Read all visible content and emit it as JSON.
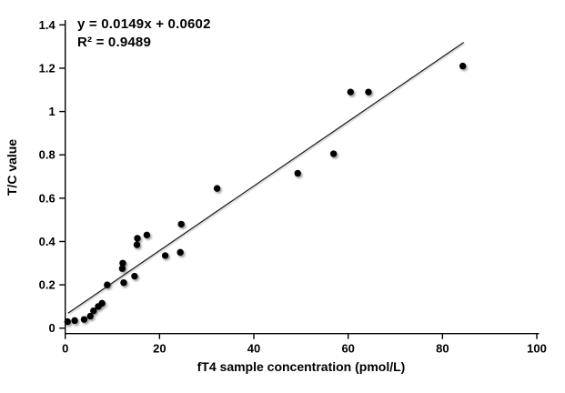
{
  "chart_data": {
    "type": "scatter",
    "title": "",
    "xlabel": "fT4 sample concentration (pmol/L)",
    "ylabel": "T/C value",
    "annotation": {
      "equation": "y = 0.0149x + 0.0602",
      "r_squared": "R² = 0.9489"
    },
    "xlim": [
      0,
      100
    ],
    "ylim": [
      0,
      1.4
    ],
    "xticks": [
      0,
      20,
      40,
      60,
      80,
      100
    ],
    "xtick_labels": [
      "0",
      "20",
      "40",
      "60",
      "80",
      "100"
    ],
    "yticks": [
      0,
      0.2,
      0.4,
      0.6,
      0.8,
      1,
      1.2,
      1.4
    ],
    "ytick_labels": [
      "0",
      "0.2",
      "0.4",
      "0.6",
      "0.8",
      "1",
      "1.2",
      "1.4"
    ],
    "grid": false,
    "legend": false,
    "marker_color": "#000000",
    "trendline_color": "#1a1a1a",
    "points": [
      [
        0.5,
        0.03
      ],
      [
        2,
        0.035
      ],
      [
        4,
        0.04
      ],
      [
        5.3,
        0.055
      ],
      [
        6,
        0.08
      ],
      [
        7,
        0.1
      ],
      [
        7.8,
        0.115
      ],
      [
        8.9,
        0.2
      ],
      [
        12.1,
        0.275
      ],
      [
        12.2,
        0.3
      ],
      [
        12.4,
        0.21
      ],
      [
        14.7,
        0.24
      ],
      [
        15.2,
        0.385
      ],
      [
        15.3,
        0.415
      ],
      [
        17.3,
        0.43
      ],
      [
        21.2,
        0.335
      ],
      [
        24.4,
        0.35
      ],
      [
        24.6,
        0.48
      ],
      [
        32.2,
        0.645
      ],
      [
        49.3,
        0.715
      ],
      [
        56.9,
        0.805
      ],
      [
        60.5,
        1.09
      ],
      [
        64.3,
        1.09
      ],
      [
        84.3,
        1.21
      ]
    ],
    "trendline": {
      "slope": 0.0149,
      "intercept": 0.0602,
      "x_start": 0.6,
      "x_end": 84.5
    }
  }
}
